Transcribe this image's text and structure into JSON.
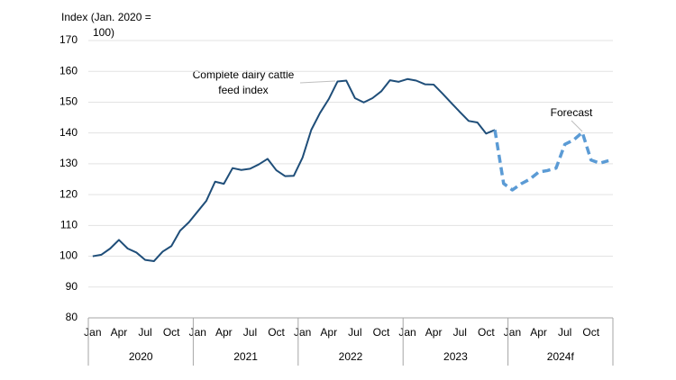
{
  "chart_data": {
    "type": "line",
    "y_label_lines": [
      "Index (Jan. 2020 =",
      "100)"
    ],
    "categories": [
      "Jan",
      null,
      null,
      "Apr",
      null,
      null,
      "Jul",
      null,
      null,
      "Oct",
      null,
      null,
      "Jan",
      null,
      null,
      "Apr",
      null,
      null,
      "Jul",
      null,
      null,
      "Oct",
      null,
      null,
      "Jan",
      null,
      null,
      "Apr",
      null,
      null,
      "Jul",
      null,
      null,
      "Oct",
      null,
      null,
      "Jan",
      null,
      null,
      "Apr",
      null,
      null,
      "Jul",
      null,
      null,
      "Oct",
      null,
      null,
      "Jan",
      null,
      null,
      "Apr",
      null,
      null,
      "Jul",
      null,
      null,
      "Oct",
      null,
      null
    ],
    "x_groups": [
      "2020",
      "2021",
      "2022",
      "2023",
      "2024f"
    ],
    "series": [
      {
        "name": "Complete dairy cattle feed index",
        "color": "#1f4e79",
        "dashed": false,
        "values": [
          100,
          100.5,
          102.5,
          105.3,
          102.5,
          101.2,
          98.8,
          98.4,
          101.5,
          103.3,
          108.3,
          111,
          114.5,
          118,
          124.2,
          123.5,
          128.6,
          128,
          128.4,
          129.8,
          131.6,
          127.9,
          126,
          126.1,
          132,
          141,
          146.5,
          151,
          156.7,
          157,
          151.3,
          149.9,
          151.3,
          153.5,
          157.1,
          156.6,
          157.5,
          157,
          155.8,
          155.7,
          152.8,
          149.8,
          146.8,
          143.9,
          143.4,
          139.8,
          141,
          null,
          null,
          null,
          null,
          null,
          null,
          null,
          null,
          null,
          null,
          null,
          null,
          null
        ]
      },
      {
        "name": "Forecast",
        "color": "#5b9bd5",
        "dashed": true,
        "values": [
          null,
          null,
          null,
          null,
          null,
          null,
          null,
          null,
          null,
          null,
          null,
          null,
          null,
          null,
          null,
          null,
          null,
          null,
          null,
          null,
          null,
          null,
          null,
          null,
          null,
          null,
          null,
          null,
          null,
          null,
          null,
          null,
          null,
          null,
          null,
          null,
          null,
          null,
          null,
          null,
          null,
          null,
          null,
          null,
          null,
          null,
          141,
          123.6,
          121.5,
          123.5,
          125,
          127.3,
          127.8,
          128.6,
          136.3,
          137.7,
          140.2,
          131.2,
          130.2,
          131
        ]
      }
    ],
    "ylim": [
      80,
      170
    ],
    "yticks": [
      80,
      90,
      100,
      110,
      120,
      130,
      140,
      150,
      160,
      170
    ],
    "grid": true
  }
}
